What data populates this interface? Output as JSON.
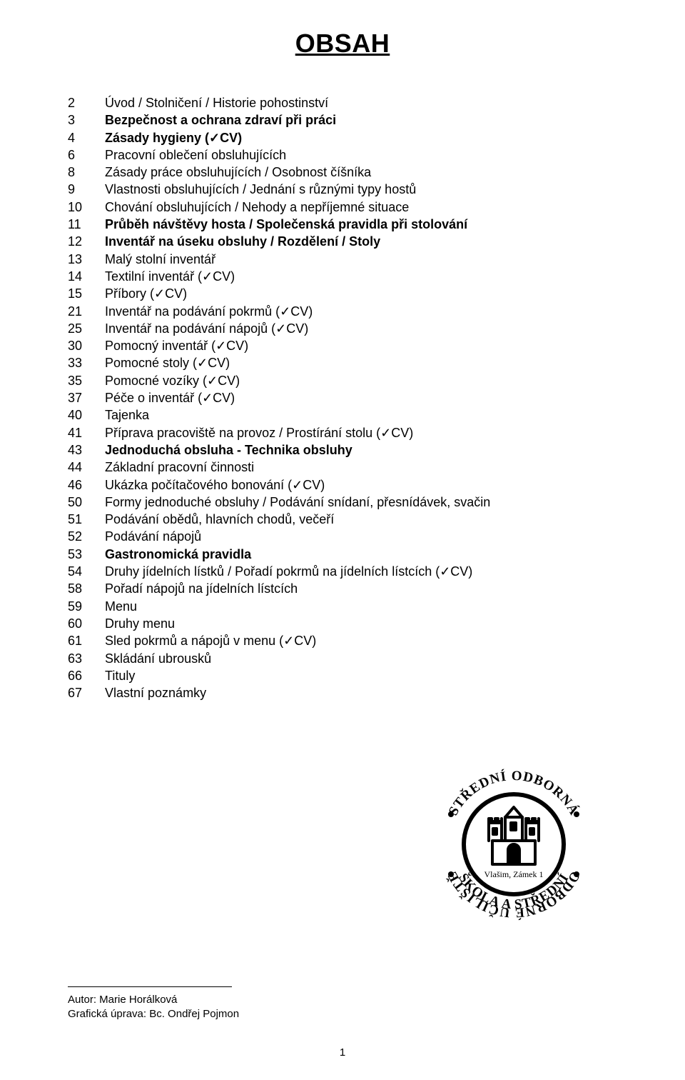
{
  "title_fontsize": 36,
  "body_fontsize": 18,
  "text_color": "#000000",
  "bg_color": "#ffffff",
  "title": "OBSAH",
  "toc": [
    {
      "pg": "2",
      "text": "Úvod / Stolničení / Historie pohostinství",
      "bold": false
    },
    {
      "pg": "3",
      "text": "Bezpečnost a ochrana zdraví při práci",
      "bold": true
    },
    {
      "pg": "4",
      "text": "Zásady hygieny (✓CV)",
      "bold": true
    },
    {
      "pg": "6",
      "text": "Pracovní oblečení obsluhujících",
      "bold": false
    },
    {
      "pg": "8",
      "text": "Zásady práce obsluhujících / Osobnost číšníka",
      "bold": false
    },
    {
      "pg": "9",
      "text": "Vlastnosti obsluhujících / Jednání s různými typy hostů",
      "bold": false
    },
    {
      "pg": "10",
      "text": "Chování obsluhujících / Nehody a nepříjemné situace",
      "bold": false
    },
    {
      "pg": "11",
      "text": "Průběh návštěvy hosta / Společenská pravidla při stolování",
      "bold": true
    },
    {
      "pg": "12",
      "text": "Inventář na úseku obsluhy / Rozdělení / Stoly",
      "bold": true
    },
    {
      "pg": "13",
      "text": "Malý stolní inventář",
      "bold": false
    },
    {
      "pg": "14",
      "text": "Textilní inventář (✓CV)",
      "bold": false
    },
    {
      "pg": "15",
      "text": "Příbory (✓CV)",
      "bold": false
    },
    {
      "pg": "21",
      "text": "Inventář na podávání pokrmů (✓CV)",
      "bold": false
    },
    {
      "pg": "25",
      "text": "Inventář na podávání nápojů (✓CV)",
      "bold": false
    },
    {
      "pg": "30",
      "text": "Pomocný inventář (✓CV)",
      "bold": false
    },
    {
      "pg": "33",
      "text": "Pomocné stoly (✓CV)",
      "bold": false
    },
    {
      "pg": "35",
      "text": "Pomocné vozíky (✓CV)",
      "bold": false
    },
    {
      "pg": "37",
      "text": "Péče o inventář (✓CV)",
      "bold": false
    },
    {
      "pg": "40",
      "text": "Tajenka",
      "bold": false
    },
    {
      "pg": "41",
      "text": "Příprava pracoviště na provoz / Prostírání stolu (✓CV)",
      "bold": false
    },
    {
      "pg": "43",
      "text": "Jednoduchá obsluha - Technika obsluhy",
      "bold": true
    },
    {
      "pg": "44",
      "text": "Základní pracovní činnosti",
      "bold": false
    },
    {
      "pg": "46",
      "text": "Ukázka počítačového bonování (✓CV)",
      "bold": false
    },
    {
      "pg": "50",
      "text": "Formy jednoduché obsluhy / Podávání snídaní, přesnídávek, svačin",
      "bold": false
    },
    {
      "pg": "51",
      "text": "Podávání obědů, hlavních chodů, večeří",
      "bold": false
    },
    {
      "pg": "52",
      "text": "Podávání nápojů",
      "bold": false
    },
    {
      "pg": "53",
      "text": "Gastronomická pravidla",
      "bold": true
    },
    {
      "pg": "54",
      "text": "Druhy jídelních lístků / Pořadí pokrmů na jídelních lístcích (✓CV)",
      "bold": false
    },
    {
      "pg": "58",
      "text": "Pořadí nápojů na jídelních lístcích",
      "bold": false
    },
    {
      "pg": "59",
      "text": "Menu",
      "bold": false
    },
    {
      "pg": "60",
      "text": "Druhy menu",
      "bold": false
    },
    {
      "pg": "61",
      "text": "Sled pokrmů a nápojů v menu (✓CV)",
      "bold": false
    },
    {
      "pg": "63",
      "text": "Skládání ubrousků",
      "bold": false
    },
    {
      "pg": "66",
      "text": "Tituly",
      "bold": false
    },
    {
      "pg": "67",
      "text": "Vlastní poznámky",
      "bold": false
    }
  ],
  "footer": {
    "line1": "Autor: Marie Horálková",
    "line2": "Grafická úprava: Bc. Ondřej Pojmon"
  },
  "page_number": "1",
  "logo": {
    "outer_text_top": "STŘEDNÍ ODBORNÁ",
    "outer_text_bottom_right": "ŠKOLA A STŘEDNÍ",
    "outer_text_left": "ODBORNÉ UČILIŠTĚ",
    "place": "Vlašim, Zámek 1",
    "ring_color": "#000000",
    "text_color": "#000000",
    "dot_count": 4
  }
}
